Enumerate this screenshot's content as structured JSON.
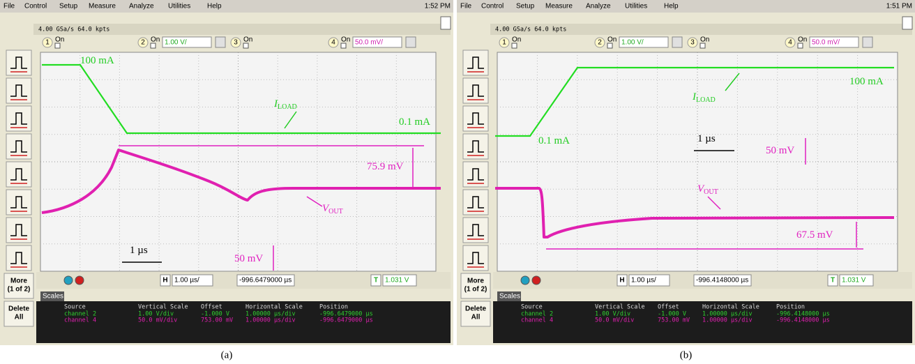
{
  "panels": [
    {
      "menu": [
        "File",
        "Control",
        "Setup",
        "Measure",
        "Analyze",
        "Utilities",
        "Help"
      ],
      "time": "1:52 PM",
      "acquisition": "4.00 GSa/s   64.0 kpts",
      "channels": [
        {
          "number": "1",
          "state": "On"
        },
        {
          "number": "2",
          "state": "On",
          "scale": "1.00 V/"
        },
        {
          "number": "3",
          "state": "On"
        },
        {
          "number": "4",
          "state": "On",
          "scale": "50.0 mV/"
        }
      ],
      "annotations": [
        {
          "text": "100 mA"
        },
        {
          "text": "I",
          "subscript": "LOAD"
        },
        {
          "text": "0.1 mA"
        },
        {
          "text": "75.9 mV"
        },
        {
          "text": "V",
          "subscript": "OUT"
        },
        {
          "text": "1 µs"
        },
        {
          "text": "50 mV"
        }
      ],
      "side_buttons": [
        [
          "More",
          "(1 of 2)"
        ],
        [
          "Delete",
          "All"
        ]
      ],
      "h_label": "H",
      "h_scale": "1.00 µs/",
      "position": "-996.6479000 µs",
      "trigger_label": "T",
      "trigger_level": "1.031 V",
      "scales_tab": "Scales",
      "scales_header": [
        "Source",
        "Vertical Scale",
        "Offset",
        "Horizontal Scale",
        "Position"
      ],
      "scales_rows": [
        [
          "channel 2",
          "1.00 V/div",
          "-1.000 V",
          "1.00000 µs/div",
          "-996.6479000 µs"
        ],
        [
          "channel 4",
          "50.0 mV/div",
          "753.00 mV",
          "1.00000 µs/div",
          "-996.6479000 µs"
        ]
      ],
      "caption": "(a)"
    },
    {
      "menu": [
        "File",
        "Control",
        "Setup",
        "Measure",
        "Analyze",
        "Utilities",
        "Help"
      ],
      "time": "1:51 PM",
      "acquisition": "4.00 GSa/s   64.0 kpts",
      "channels": [
        {
          "number": "1",
          "state": "On"
        },
        {
          "number": "2",
          "state": "On",
          "scale": "1.00 V/"
        },
        {
          "number": "3",
          "state": "On"
        },
        {
          "number": "4",
          "state": "On",
          "scale": "50.0 mV/"
        }
      ],
      "annotations": [
        {
          "text": "100 mA"
        },
        {
          "text": "I",
          "subscript": "LOAD"
        },
        {
          "text": "0.1 mA"
        },
        {
          "text": "1 µs"
        },
        {
          "text": "50 mV"
        },
        {
          "text": "V",
          "subscript": "OUT"
        },
        {
          "text": "67.5 mV"
        }
      ],
      "side_buttons": [
        [
          "More",
          "(1 of 2)"
        ],
        [
          "Delete",
          "All"
        ]
      ],
      "h_label": "H",
      "h_scale": "1.00 µs/",
      "position": "-996.4148000 µs",
      "trigger_label": "T",
      "trigger_level": "1.031 V",
      "scales_tab": "Scales",
      "scales_header": [
        "Source",
        "Vertical Scale",
        "Offset",
        "Horizontal Scale",
        "Position"
      ],
      "scales_rows": [
        [
          "channel 2",
          "1.00 V/div",
          "-1.000 V",
          "1.00000 µs/div",
          "-996.4148000 µs"
        ],
        [
          "channel 4",
          "50.0 mV/div",
          "753.00 mV",
          "1.00000 µs/div",
          "-996.4148000 µs"
        ]
      ],
      "caption": "(b)"
    }
  ]
}
